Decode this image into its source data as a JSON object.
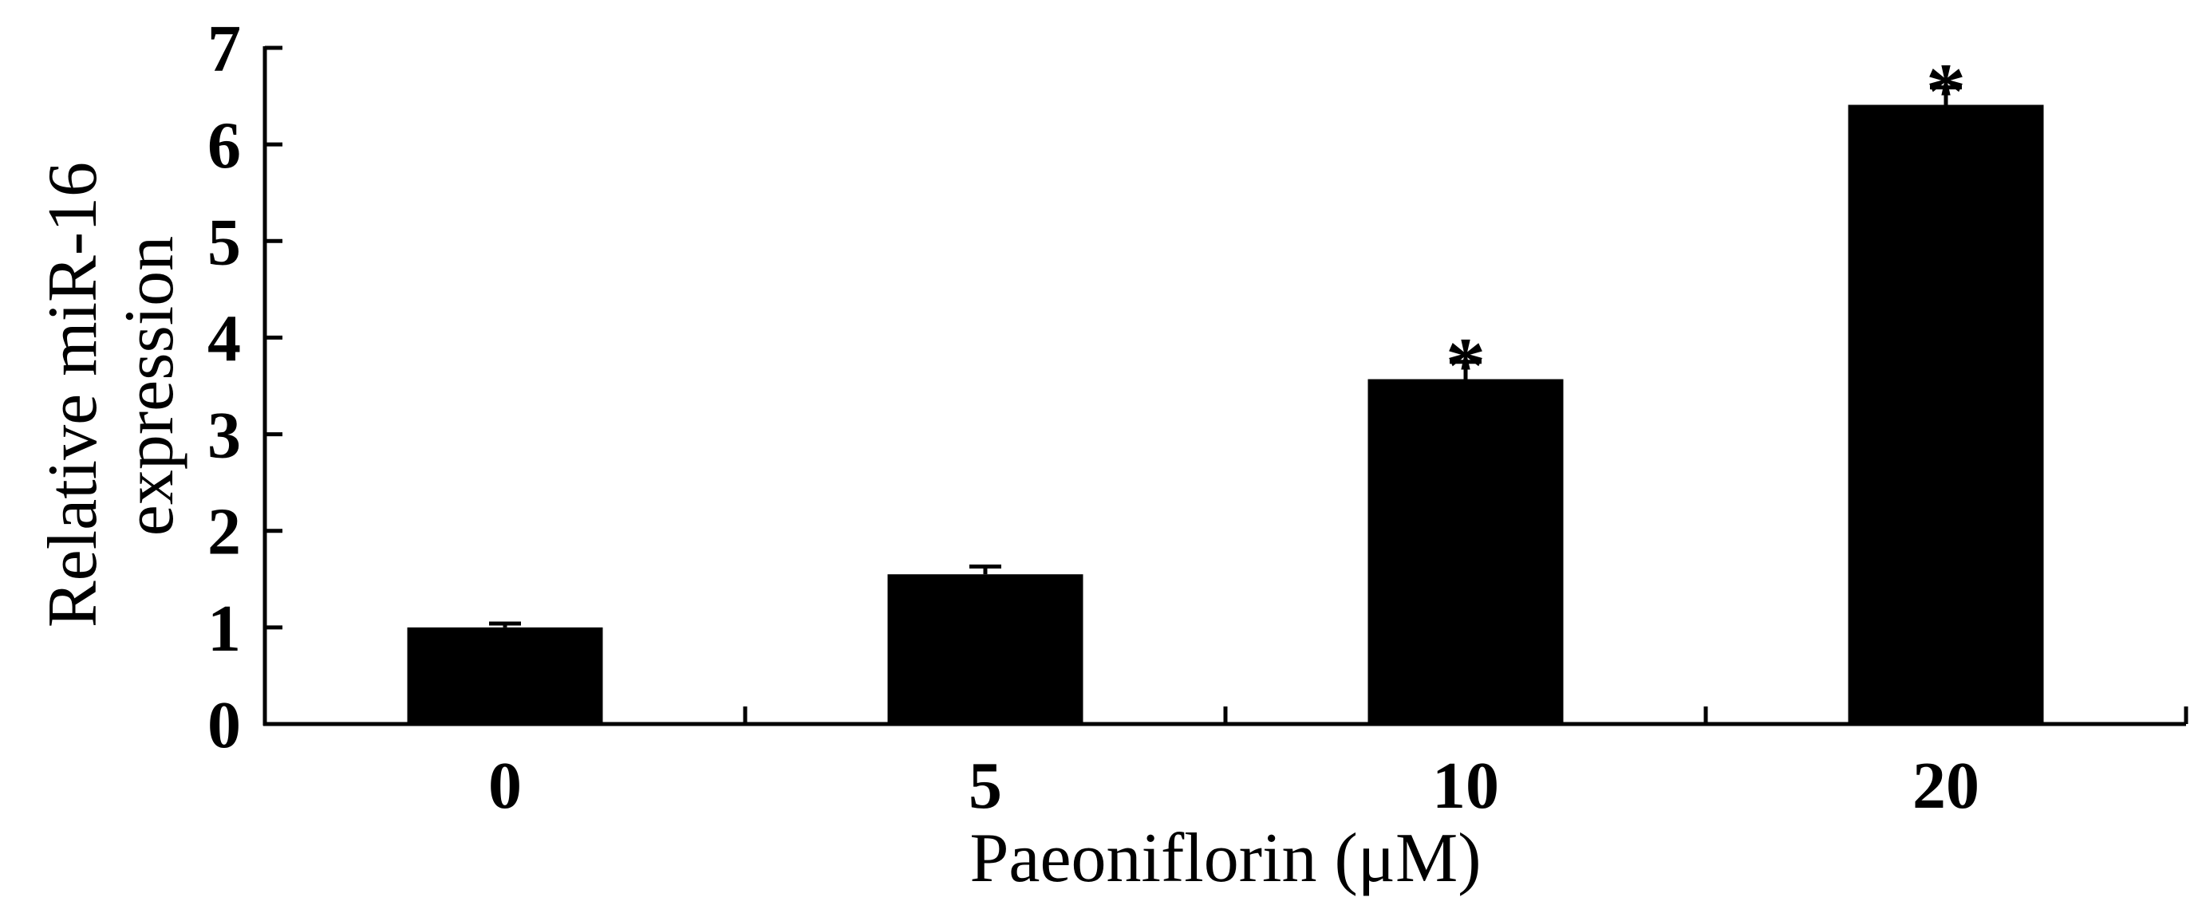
{
  "chart_data": {
    "type": "bar",
    "categories": [
      "0",
      "5",
      "10",
      "20"
    ],
    "values": [
      1.0,
      1.55,
      3.57,
      6.41
    ],
    "error": [
      0.04,
      0.08,
      0.18,
      0.18
    ],
    "annotations": [
      "",
      "",
      "*",
      "*"
    ],
    "xlabel": "Paeoniflorin (μM)",
    "ylabel": [
      "Relative miR-16",
      "expression"
    ],
    "ylim": [
      0,
      7
    ],
    "yticks": [
      "0",
      "1",
      "2",
      "3",
      "4",
      "5",
      "6",
      "7"
    ],
    "grid": false,
    "bar_color": "#000000"
  }
}
